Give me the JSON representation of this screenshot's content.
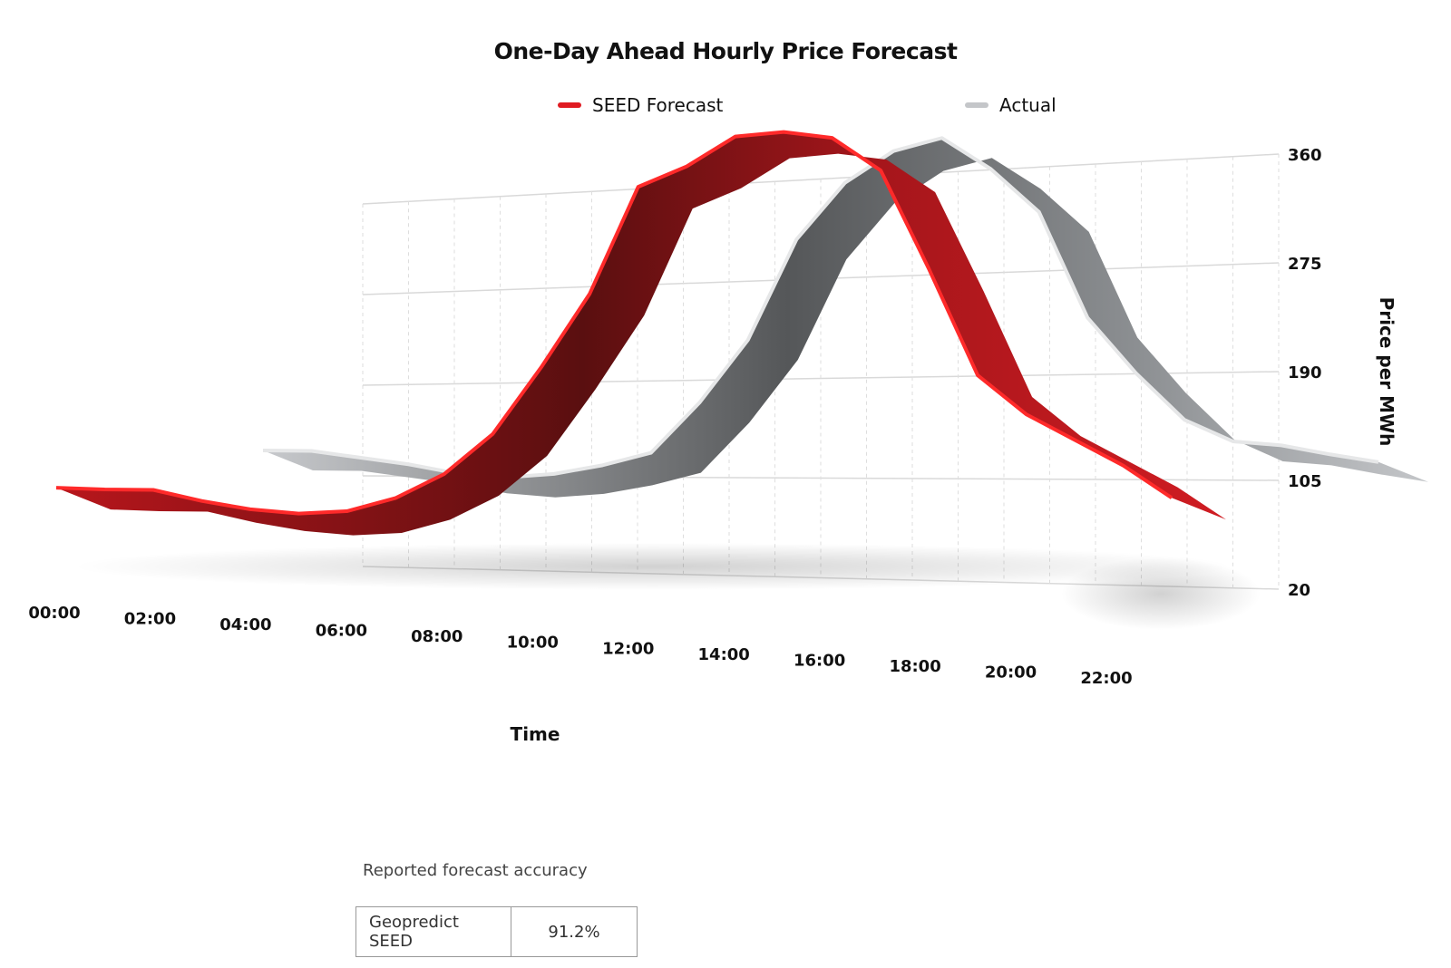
{
  "chart_data": {
    "type": "line",
    "title": "One-Day Ahead Hourly Price Forecast",
    "xlabel": "Time",
    "ylabel": "Price per MWh",
    "ylim": [
      20,
      360
    ],
    "yticks": [
      "20",
      "105",
      "190",
      "275",
      "360"
    ],
    "x_tick_labels": [
      "00:00",
      "02:00",
      "04:00",
      "06:00",
      "08:00",
      "10:00",
      "12:00",
      "14:00",
      "16:00",
      "18:00",
      "20:00",
      "22:00"
    ],
    "legend_position": "top",
    "grid": true,
    "style": "3d-ribbon",
    "series": [
      {
        "name": "SEED Forecast",
        "color": "#d71920",
        "x": [
          "00:00",
          "01:00",
          "02:00",
          "03:00",
          "04:00",
          "05:00",
          "06:00",
          "07:00",
          "08:00",
          "09:00",
          "10:00",
          "11:00",
          "12:00",
          "13:00",
          "14:00",
          "15:00",
          "16:00",
          "17:00",
          "18:00",
          "19:00",
          "20:00",
          "21:00",
          "22:00",
          "23:00"
        ],
        "values": [
          58,
          57,
          57,
          49,
          43,
          40,
          42,
          52,
          70,
          100,
          150,
          205,
          285,
          300,
          322,
          325,
          320,
          295,
          220,
          140,
          110,
          90,
          70,
          45
        ]
      },
      {
        "name": "Actual",
        "color": "#b8babd",
        "x": [
          "00:00",
          "01:00",
          "02:00",
          "03:00",
          "04:00",
          "05:00",
          "06:00",
          "07:00",
          "08:00",
          "09:00",
          "10:00",
          "11:00",
          "12:00",
          "13:00",
          "14:00",
          "15:00",
          "16:00",
          "17:00",
          "18:00",
          "19:00",
          "20:00",
          "21:00",
          "22:00",
          "23:00"
        ],
        "values": [
          80,
          80,
          75,
          70,
          63,
          60,
          63,
          70,
          80,
          120,
          170,
          250,
          295,
          320,
          330,
          305,
          270,
          185,
          140,
          102,
          84,
          80,
          72,
          65
        ]
      }
    ]
  },
  "legend": {
    "forecast_label": "SEED Forecast",
    "actual_label": "Actual"
  },
  "accuracy": {
    "caption": "Reported forecast accuracy",
    "rows": [
      {
        "model": "Geopredict SEED",
        "value": "91.2%"
      }
    ]
  }
}
